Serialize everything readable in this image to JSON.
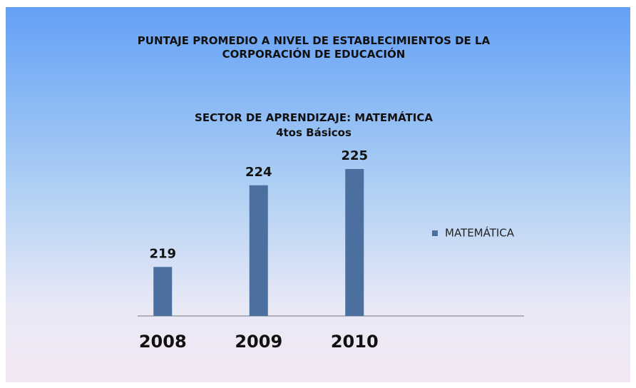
{
  "chart_data": {
    "type": "bar",
    "title": "PUNTAJE PROMEDIO A NIVEL DE ESTABLECIMIENTOS DE LA CORPORACIÓN DE EDUCACIÓN",
    "subtitle": [
      "SECTOR DE APRENDIZAJE: MATEMÁTICA",
      "4tos Básicos"
    ],
    "categories": [
      "2008",
      "2009",
      "2010"
    ],
    "series": [
      {
        "name": "MATEMÁTICA",
        "color": "#4b6f9f",
        "values": [
          219,
          224,
          225
        ]
      }
    ],
    "ylim": [
      216,
      226
    ],
    "legend": "right"
  }
}
